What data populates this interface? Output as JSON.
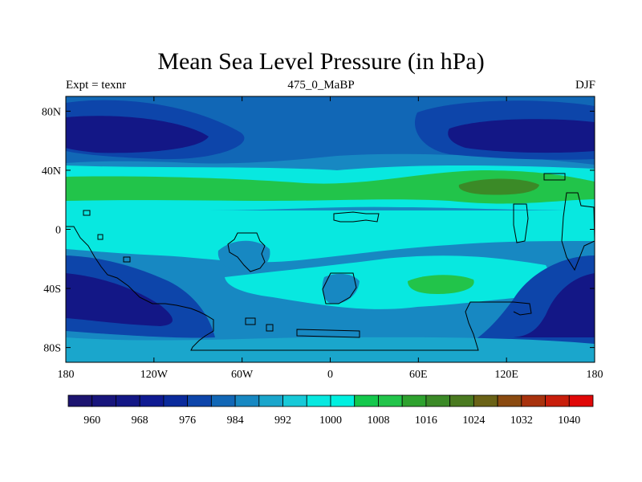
{
  "chart_data": {
    "type": "filled-contour-map",
    "title": "Mean Sea Level Pressure (in hPa)",
    "left_label": "Expt = texnr",
    "center_label": "475_0_MaBP",
    "right_label": "DJF",
    "lon_range": [
      -180,
      180
    ],
    "lat_range": [
      -90,
      90
    ],
    "x_ticks": [
      {
        "value": -180,
        "label": "180"
      },
      {
        "value": -120,
        "label": "120W"
      },
      {
        "value": -60,
        "label": "60W"
      },
      {
        "value": 0,
        "label": "0"
      },
      {
        "value": 60,
        "label": "60E"
      },
      {
        "value": 120,
        "label": "120E"
      },
      {
        "value": 180,
        "label": "180"
      }
    ],
    "y_ticks": [
      {
        "value": 80,
        "label": "80N"
      },
      {
        "value": 40,
        "label": "40N"
      },
      {
        "value": 0,
        "label": "0"
      },
      {
        "value": -40,
        "label": "40S"
      },
      {
        "value": -80,
        "label": "80S"
      }
    ],
    "colorbar": {
      "units": "hPa",
      "levels": [
        956,
        960,
        964,
        968,
        972,
        976,
        980,
        984,
        988,
        992,
        996,
        1000,
        1004,
        1008,
        1012,
        1016,
        1020,
        1024,
        1028,
        1032,
        1036,
        1040
      ],
      "labeled_levels": [
        "960",
        "968",
        "976",
        "984",
        "992",
        "1000",
        "1008",
        "1016",
        "1024",
        "1032",
        "1040"
      ],
      "colors": [
        "#1c1470",
        "#18157c",
        "#131786",
        "#0f1a92",
        "#0a2a9c",
        "#0d45aa",
        "#1167b6",
        "#1788c2",
        "#1aa6cc",
        "#17c9d8",
        "#08e8e0",
        "#00f0e0",
        "#14c84c",
        "#22c44a",
        "#2ea22e",
        "#3b8a27",
        "#4a7a20",
        "#6a6216",
        "#8a4a10",
        "#a8320d",
        "#c81e0b",
        "#e00808"
      ]
    }
  }
}
